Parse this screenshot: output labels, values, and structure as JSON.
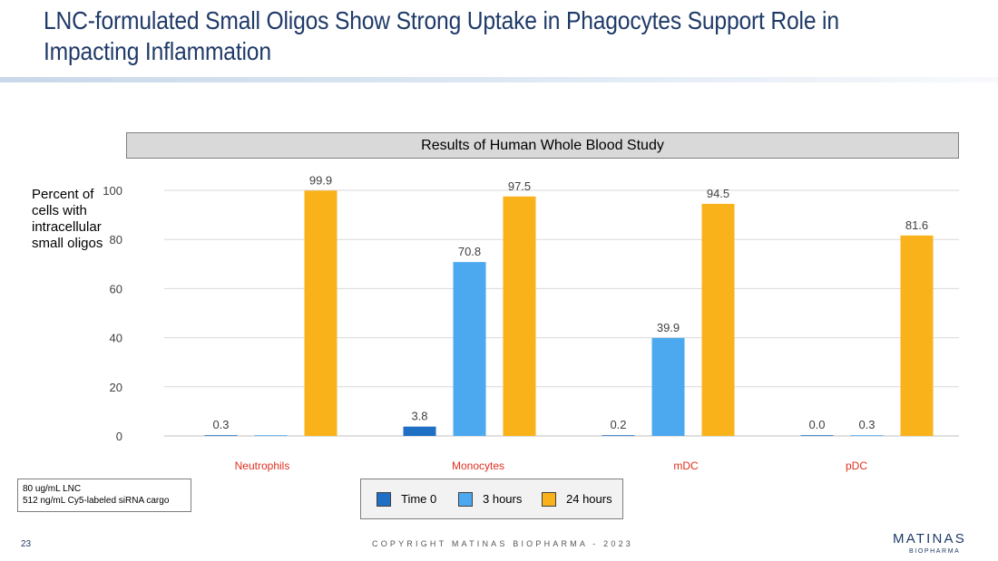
{
  "slide": {
    "title": "LNC-formulated Small Oligos Show Strong Uptake in Phagocytes Support Role in Impacting Inflammation",
    "page_number": "23",
    "copyright": "COPYRIGHT MATINAS BIOPHARMA - 2023",
    "logo_main": "MATINAS",
    "logo_sub": "BIOPHARMA"
  },
  "note": {
    "line1": "80 ug/mL LNC",
    "line2": "512 ng/mL Cy5-labeled siRNA cargo"
  },
  "chart_data": {
    "type": "bar",
    "title": "Results of Human Whole Blood Study",
    "ylabel": "Percent of cells with intracellular small oligos",
    "xlabel": "",
    "ylim": [
      0,
      100
    ],
    "yticks": [
      0,
      20,
      40,
      60,
      80,
      100
    ],
    "grid": true,
    "categories": [
      "Neutrophils",
      "Monocytes",
      "mDC",
      "pDC"
    ],
    "series": [
      {
        "name": "Time 0",
        "color": "#1f6fc5",
        "values": [
          0.3,
          3.8,
          0.2,
          0.0
        ],
        "labels": [
          "0.3",
          "3.8",
          "0.2",
          "0.0"
        ]
      },
      {
        "name": "3 hours",
        "color": "#4da9ef",
        "values": [
          0.3,
          70.8,
          39.9,
          0.3
        ],
        "labels": [
          "",
          "70.8",
          "39.9",
          "0.3"
        ]
      },
      {
        "name": "24 hours",
        "color": "#fab21b",
        "values": [
          99.9,
          97.5,
          94.5,
          81.6
        ],
        "labels": [
          "99.9",
          "97.5",
          "94.5",
          "81.6"
        ]
      }
    ],
    "category_color": "#e0301e",
    "legend_position": "bottom-center"
  }
}
